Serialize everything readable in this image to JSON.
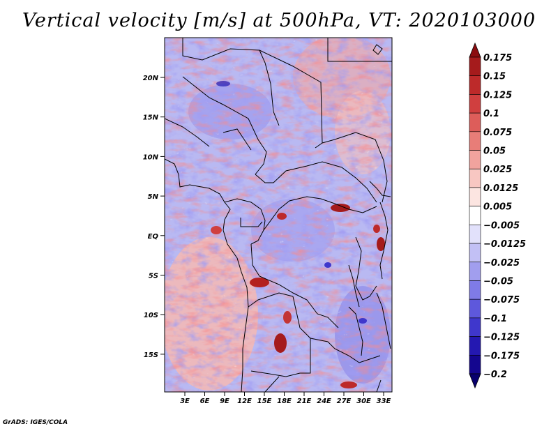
{
  "title": "Vertical velocity [m/s] at 500hPa, VT: 2020103000",
  "footer": "GrADS: IGES/COLA",
  "map": {
    "lat_labels": [
      "20N",
      "15N",
      "10N",
      "5N",
      "EQ",
      "5S",
      "10S",
      "15S"
    ],
    "lon_labels": [
      "3E",
      "6E",
      "9E",
      "12E",
      "15E",
      "18E",
      "21E",
      "24E",
      "27E",
      "30E",
      "33E"
    ]
  },
  "colorbar": {
    "labels": [
      "0.175",
      "0.15",
      "0.125",
      "0.1",
      "0.075",
      "0.05",
      "0.025",
      "0.0125",
      "0.005",
      "−0.005",
      "−0.0125",
      "−0.025",
      "−0.05",
      "−0.075",
      "−0.1",
      "−0.125",
      "−0.175",
      "−0.2"
    ],
    "colors": [
      "#8b0d10",
      "#a51b1c",
      "#bd2a2a",
      "#d03f3f",
      "#dd5d5a",
      "#e87d78",
      "#f1a39e",
      "#f8c7c2",
      "#fce5e1",
      "#ffffff",
      "#e2e1fb",
      "#c2c0f5",
      "#a19eee",
      "#7f7be6",
      "#5e58dc",
      "#3f37cc",
      "#2418b1",
      "#14068f",
      "#08006e"
    ]
  }
}
